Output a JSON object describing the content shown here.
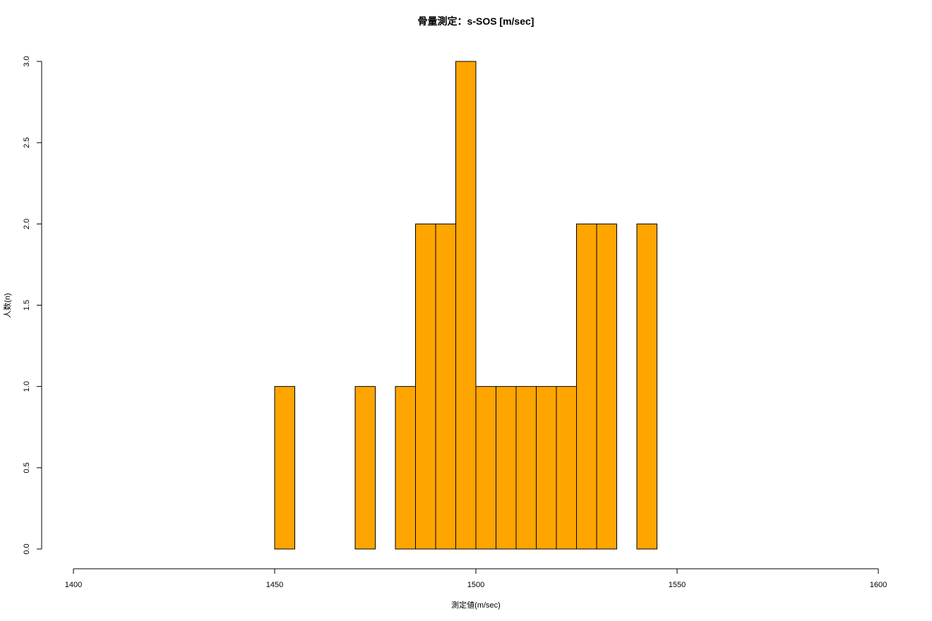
{
  "chart_data": {
    "type": "bar",
    "title": "骨量測定：s-SOS [m/sec]",
    "xlabel": "測定値(m/sec)",
    "ylabel": "人数(n)",
    "xlim": [
      1400,
      1600
    ],
    "ylim": [
      0,
      3
    ],
    "x_ticks": [
      "1400",
      "1450",
      "1500",
      "1550",
      "1600"
    ],
    "y_ticks": [
      "0.0",
      "0.5",
      "1.0",
      "1.5",
      "2.0",
      "2.5",
      "3.0"
    ],
    "bin_width": 5,
    "bins": [
      {
        "from": 1450,
        "to": 1455,
        "count": 1
      },
      {
        "from": 1455,
        "to": 1460,
        "count": 0
      },
      {
        "from": 1460,
        "to": 1465,
        "count": 0
      },
      {
        "from": 1465,
        "to": 1470,
        "count": 0
      },
      {
        "from": 1470,
        "to": 1475,
        "count": 1
      },
      {
        "from": 1475,
        "to": 1480,
        "count": 0
      },
      {
        "from": 1480,
        "to": 1485,
        "count": 1
      },
      {
        "from": 1485,
        "to": 1490,
        "count": 2
      },
      {
        "from": 1490,
        "to": 1495,
        "count": 2
      },
      {
        "from": 1495,
        "to": 1500,
        "count": 3
      },
      {
        "from": 1500,
        "to": 1505,
        "count": 1
      },
      {
        "from": 1505,
        "to": 1510,
        "count": 1
      },
      {
        "from": 1510,
        "to": 1515,
        "count": 1
      },
      {
        "from": 1515,
        "to": 1520,
        "count": 1
      },
      {
        "from": 1520,
        "to": 1525,
        "count": 1
      },
      {
        "from": 1525,
        "to": 1530,
        "count": 2
      },
      {
        "from": 1530,
        "to": 1535,
        "count": 2
      },
      {
        "from": 1535,
        "to": 1540,
        "count": 0
      },
      {
        "from": 1540,
        "to": 1545,
        "count": 2
      }
    ],
    "bar_color": "#FFA500",
    "border_color": "#000000",
    "grid": false
  }
}
